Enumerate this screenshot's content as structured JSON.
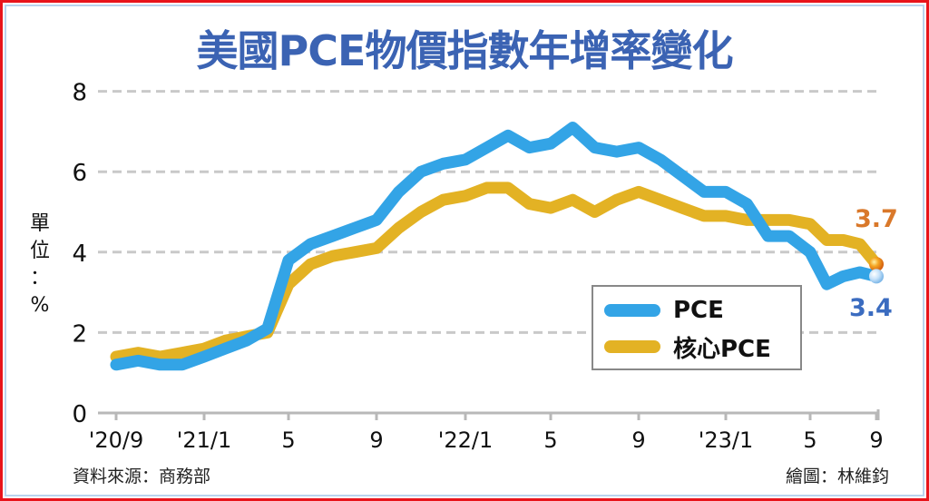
{
  "title": "美國PCE物價指數年增率變化",
  "y_unit_label": [
    "單",
    "位",
    "：",
    "%"
  ],
  "source": "資料來源：商務部",
  "credit": "繪圖：林維鈞",
  "legend": {
    "pce": "PCE",
    "core": "核心PCE"
  },
  "end_labels": {
    "core": "3.7",
    "pce": "3.4"
  },
  "colors": {
    "title": "#3b63b3",
    "pce": "#33a4e6",
    "core": "#e3b224",
    "core_label": "#d9782a",
    "pce_label": "#3b6cc0",
    "grid": "#c9c9c9",
    "frame": "#e8141b"
  },
  "chart_data": {
    "type": "line",
    "title": "美國PCE物價指數年增率變化",
    "xlabel": "",
    "ylabel": "單位：%",
    "ylim": [
      0,
      8
    ],
    "yticks": [
      0,
      2,
      4,
      6,
      8
    ],
    "grid": true,
    "legend_position": "lower right",
    "xtick_labels": [
      "'20/9",
      "'21/1",
      "5",
      "9",
      "'22/1",
      "5",
      "9",
      "'23/1",
      "5",
      "9"
    ],
    "x": [
      "2020-09",
      "2020-10",
      "2020-11",
      "2020-12",
      "2021-01",
      "2021-02",
      "2021-03",
      "2021-04",
      "2021-05",
      "2021-06",
      "2021-07",
      "2021-08",
      "2021-09",
      "2021-10",
      "2021-11",
      "2021-12",
      "2022-01",
      "2022-02",
      "2022-03",
      "2022-04",
      "2022-05",
      "2022-06",
      "2022-07",
      "2022-08",
      "2022-09",
      "2022-10",
      "2022-11",
      "2022-12",
      "2023-01",
      "2023-02",
      "2023-03",
      "2023-04",
      "2023-05",
      "2023-06",
      "2023-07",
      "2023-08",
      "2023-09"
    ],
    "series": [
      {
        "name": "PCE",
        "values": [
          1.2,
          1.3,
          1.2,
          1.2,
          1.4,
          1.6,
          1.8,
          2.1,
          3.8,
          4.2,
          4.4,
          4.6,
          4.8,
          5.5,
          6.0,
          6.2,
          6.3,
          6.6,
          6.9,
          6.6,
          6.7,
          7.1,
          6.6,
          6.5,
          6.6,
          6.3,
          5.9,
          5.5,
          5.5,
          5.2,
          4.4,
          4.4,
          4.0,
          3.2,
          3.4,
          3.5,
          3.4
        ]
      },
      {
        "name": "核心PCE",
        "values": [
          1.4,
          1.5,
          1.4,
          1.5,
          1.6,
          1.8,
          1.9,
          2.0,
          3.2,
          3.7,
          3.9,
          4.0,
          4.1,
          4.6,
          5.0,
          5.3,
          5.4,
          5.6,
          5.6,
          5.2,
          5.1,
          5.3,
          5.0,
          5.3,
          5.5,
          5.3,
          5.1,
          4.9,
          4.9,
          4.8,
          4.8,
          4.8,
          4.7,
          4.3,
          4.3,
          4.2,
          3.7
        ]
      }
    ],
    "annotations": [
      {
        "series": "核心PCE",
        "x": "2023-09",
        "text": "3.7"
      },
      {
        "series": "PCE",
        "x": "2023-09",
        "text": "3.4"
      }
    ]
  }
}
